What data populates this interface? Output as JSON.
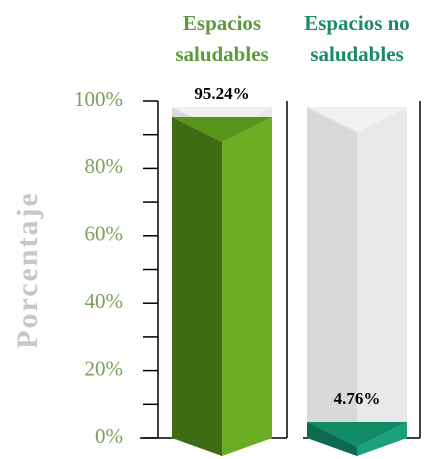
{
  "chart_data": {
    "type": "bar3d",
    "categories": [
      "Espacios saludables",
      "Espacios no saludables"
    ],
    "values": [
      95.24,
      4.76
    ],
    "value_labels": [
      "95.24%",
      "4.76%"
    ],
    "series_colors": [
      {
        "dark": "#3f6b14",
        "light": "#6aad22",
        "top": "#58931a",
        "text": "#5e9a3c"
      },
      {
        "dark": "#0b6a4f",
        "light": "#1aa07a",
        "top": "#128a66",
        "text": "#1a8a68"
      }
    ],
    "ylabel": "Porcentaje",
    "ylim": [
      0,
      100
    ],
    "yticks": [
      {
        "value": 0,
        "label": "0%"
      },
      {
        "value": 20,
        "label": "20%"
      },
      {
        "value": 40,
        "label": "40%"
      },
      {
        "value": 60,
        "label": "60%"
      },
      {
        "value": 80,
        "label": "80%"
      },
      {
        "value": 100,
        "label": "100%"
      }
    ],
    "yminorticks": [
      10,
      30,
      50,
      70,
      90
    ]
  }
}
